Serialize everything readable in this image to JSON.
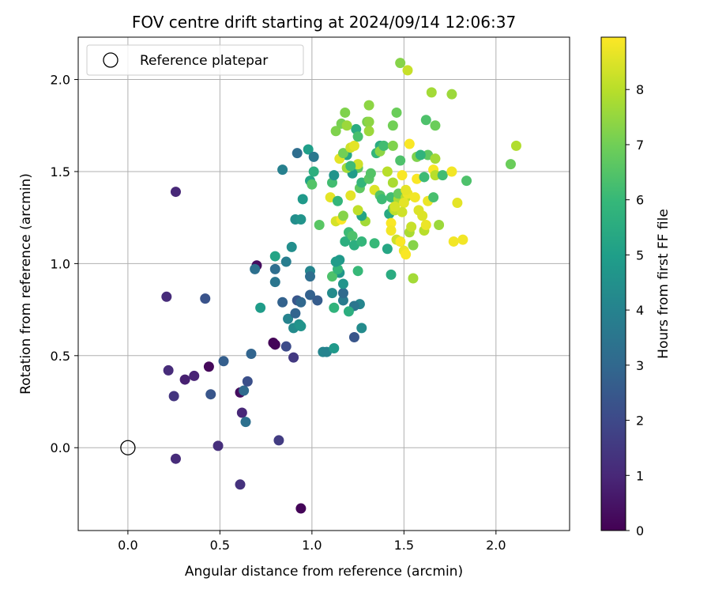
{
  "chart_data": {
    "type": "scatter",
    "title": "FOV centre drift starting at 2024/09/14 12:06:37",
    "xlabel": "Angular distance from reference (arcmin)",
    "ylabel": "Rotation from reference (arcmin)",
    "xlim": [
      -0.27,
      2.4
    ],
    "ylim": [
      -0.45,
      2.23
    ],
    "xticks": [
      0.0,
      0.5,
      1.0,
      1.5,
      2.0
    ],
    "yticks": [
      0.0,
      0.5,
      1.0,
      1.5,
      2.0
    ],
    "xtick_labels": [
      "0.0",
      "0.5",
      "1.0",
      "1.5",
      "2.0"
    ],
    "ytick_labels": [
      "0.0",
      "0.5",
      "1.0",
      "1.5",
      "2.0"
    ],
    "grid": true,
    "legend": {
      "location": "upper-left",
      "entries": [
        {
          "label": "Reference platepar",
          "marker": "open-circle"
        }
      ]
    },
    "reference_point": {
      "x": 0.0,
      "y": 0.0
    },
    "colorbar": {
      "label": "Hours from first FF file",
      "range": [
        0,
        8.95
      ],
      "ticks": [
        0,
        1,
        2,
        3,
        4,
        5,
        6,
        7,
        8
      ],
      "tick_labels": [
        "0",
        "1",
        "2",
        "3",
        "4",
        "5",
        "6",
        "7",
        "8"
      ],
      "colormap": "viridis",
      "stops": [
        "#440154",
        "#482878",
        "#3e4989",
        "#31688e",
        "#26828e",
        "#1f9e89",
        "#35b779",
        "#6ece58",
        "#b5de2b",
        "#fde725"
      ]
    },
    "points": [
      [
        0.94,
        -0.33,
        0.1
      ],
      [
        0.61,
        -0.2,
        1.3
      ],
      [
        0.26,
        -0.06,
        1.1
      ],
      [
        0.49,
        0.01,
        1.2
      ],
      [
        0.82,
        0.04,
        1.6
      ],
      [
        0.62,
        0.19,
        1.0
      ],
      [
        0.64,
        0.14,
        3.3
      ],
      [
        0.25,
        0.28,
        1.4
      ],
      [
        0.45,
        0.29,
        2.4
      ],
      [
        0.61,
        0.3,
        0.3
      ],
      [
        0.63,
        0.31,
        3.1
      ],
      [
        0.65,
        0.36,
        2.2
      ],
      [
        0.31,
        0.37,
        0.8
      ],
      [
        0.36,
        0.39,
        0.9
      ],
      [
        0.22,
        0.42,
        1.1
      ],
      [
        0.44,
        0.44,
        0.2
      ],
      [
        0.52,
        0.47,
        2.7
      ],
      [
        0.67,
        0.51,
        2.9
      ],
      [
        0.8,
        0.56,
        0.1
      ],
      [
        0.79,
        0.57,
        0.1
      ],
      [
        0.86,
        0.55,
        2.1
      ],
      [
        0.9,
        0.49,
        1.5
      ],
      [
        0.21,
        0.82,
        1.1
      ],
      [
        0.42,
        0.81,
        2.3
      ],
      [
        0.7,
        0.99,
        0.3
      ],
      [
        0.69,
        0.97,
        3.3
      ],
      [
        0.8,
        0.97,
        3.2
      ],
      [
        0.8,
        0.9,
        3.5
      ],
      [
        0.72,
        0.76,
        4.9
      ],
      [
        0.84,
        0.79,
        2.8
      ],
      [
        0.87,
        0.7,
        4.0
      ],
      [
        0.9,
        0.65,
        4.3
      ],
      [
        0.91,
        0.73,
        2.9
      ],
      [
        0.93,
        0.67,
        4.5
      ],
      [
        0.92,
        0.8,
        2.4
      ],
      [
        0.94,
        0.79,
        3.0
      ],
      [
        0.94,
        0.66,
        4.6
      ],
      [
        0.89,
        1.09,
        4.4
      ],
      [
        0.8,
        1.04,
        5.2
      ],
      [
        0.86,
        1.01,
        3.8
      ],
      [
        0.99,
        0.96,
        4.1
      ],
      [
        0.99,
        0.93,
        3.2
      ],
      [
        0.99,
        0.83,
        2.8
      ],
      [
        1.03,
        0.8,
        2.6
      ],
      [
        1.06,
        0.52,
        4.1
      ],
      [
        1.08,
        0.52,
        4.0
      ],
      [
        1.12,
        0.54,
        4.8
      ],
      [
        1.23,
        0.6,
        2.4
      ],
      [
        1.27,
        0.65,
        4.3
      ],
      [
        1.26,
        0.78,
        4.1
      ],
      [
        1.23,
        0.77,
        3.5
      ],
      [
        1.2,
        0.74,
        5.6
      ],
      [
        1.17,
        0.8,
        3.7
      ],
      [
        1.11,
        0.84,
        4.3
      ],
      [
        1.12,
        0.76,
        5.8
      ],
      [
        1.15,
        0.95,
        4.7
      ],
      [
        1.17,
        0.84,
        3.1
      ],
      [
        1.17,
        0.89,
        4.6
      ],
      [
        1.11,
        0.93,
        6.4
      ],
      [
        1.14,
        0.97,
        5.9
      ],
      [
        1.15,
        1.02,
        4.8
      ],
      [
        1.13,
        1.01,
        4.9
      ],
      [
        1.25,
        0.96,
        6.0
      ],
      [
        0.26,
        1.39,
        1.0
      ],
      [
        0.84,
        1.51,
        3.9
      ],
      [
        0.91,
        1.24,
        4.4
      ],
      [
        0.94,
        1.24,
        4.6
      ],
      [
        0.95,
        1.35,
        4.8
      ],
      [
        0.92,
        1.6,
        3.2
      ],
      [
        0.98,
        1.62,
        5.0
      ],
      [
        1.01,
        1.58,
        3.6
      ],
      [
        0.99,
        1.45,
        5.2
      ],
      [
        1.0,
        1.43,
        6.5
      ],
      [
        1.01,
        1.5,
        5.6
      ],
      [
        1.04,
        1.21,
        6.6
      ],
      [
        1.11,
        1.44,
        6.2
      ],
      [
        1.1,
        1.36,
        8.6
      ],
      [
        1.12,
        1.48,
        4.6
      ],
      [
        1.14,
        1.34,
        5.9
      ],
      [
        1.13,
        1.23,
        8.4
      ],
      [
        1.16,
        1.24,
        8.9
      ],
      [
        1.17,
        1.26,
        7.3
      ],
      [
        1.18,
        1.12,
        5.6
      ],
      [
        1.2,
        1.17,
        6.1
      ],
      [
        1.22,
        1.15,
        6.4
      ],
      [
        1.23,
        1.1,
        5.6
      ],
      [
        1.27,
        1.12,
        5.9
      ],
      [
        1.29,
        1.23,
        7.7
      ],
      [
        1.27,
        1.26,
        5.2
      ],
      [
        1.25,
        1.29,
        8.1
      ],
      [
        1.21,
        1.37,
        8.6
      ],
      [
        1.26,
        1.41,
        6.7
      ],
      [
        1.27,
        1.44,
        5.9
      ],
      [
        1.25,
        1.52,
        6.7
      ],
      [
        1.25,
        1.54,
        8.3
      ],
      [
        1.22,
        1.49,
        4.9
      ],
      [
        1.19,
        1.59,
        5.3
      ],
      [
        1.19,
        1.52,
        7.7
      ],
      [
        1.15,
        1.57,
        8.6
      ],
      [
        1.17,
        1.6,
        7.0
      ],
      [
        1.21,
        1.63,
        8.3
      ],
      [
        1.23,
        1.64,
        8.6
      ],
      [
        1.21,
        1.53,
        6.1
      ],
      [
        1.24,
        1.73,
        5.5
      ],
      [
        1.25,
        1.69,
        6.3
      ],
      [
        1.13,
        1.72,
        7.2
      ],
      [
        1.16,
        1.76,
        7.1
      ],
      [
        1.19,
        1.75,
        7.6
      ],
      [
        1.18,
        1.82,
        7.2
      ],
      [
        1.3,
        1.77,
        7.1
      ],
      [
        1.31,
        1.77,
        7.4
      ],
      [
        1.31,
        1.72,
        7.6
      ],
      [
        1.31,
        1.86,
        7.4
      ],
      [
        1.35,
        1.6,
        5.9
      ],
      [
        1.37,
        1.64,
        5.5
      ],
      [
        1.37,
        1.61,
        7.4
      ],
      [
        1.39,
        1.64,
        6.2
      ],
      [
        1.44,
        1.64,
        7.2
      ],
      [
        1.44,
        1.75,
        7.0
      ],
      [
        1.46,
        1.82,
        6.9
      ],
      [
        1.41,
        1.5,
        8.0
      ],
      [
        1.31,
        1.46,
        6.6
      ],
      [
        1.32,
        1.49,
        6.5
      ],
      [
        1.34,
        1.4,
        8.5
      ],
      [
        1.37,
        1.37,
        6.5
      ],
      [
        1.38,
        1.35,
        6.1
      ],
      [
        1.43,
        1.36,
        6.2
      ],
      [
        1.44,
        1.44,
        7.8
      ],
      [
        1.42,
        1.27,
        5.4
      ],
      [
        1.44,
        1.3,
        6.7
      ],
      [
        1.45,
        1.29,
        8.1
      ],
      [
        1.47,
        1.35,
        7.8
      ],
      [
        1.47,
        1.38,
        6.8
      ],
      [
        1.51,
        1.36,
        8.0
      ],
      [
        1.52,
        1.38,
        8.7
      ],
      [
        1.5,
        1.33,
        8.6
      ],
      [
        1.49,
        1.28,
        8.3
      ],
      [
        1.43,
        1.22,
        8.9
      ],
      [
        1.43,
        1.18,
        8.8
      ],
      [
        1.46,
        1.13,
        8.3
      ],
      [
        1.41,
        1.08,
        5.3
      ],
      [
        1.43,
        0.94,
        5.5
      ],
      [
        1.34,
        1.11,
        6.0
      ],
      [
        1.48,
        1.12,
        6.6
      ],
      [
        1.48,
        1.12,
        8.9
      ],
      [
        1.5,
        1.07,
        8.7
      ],
      [
        1.51,
        1.05,
        8.9
      ],
      [
        1.53,
        1.17,
        7.8
      ],
      [
        1.54,
        1.2,
        8.2
      ],
      [
        1.55,
        1.1,
        7.3
      ],
      [
        1.55,
        0.92,
        7.7
      ],
      [
        1.56,
        1.36,
        8.8
      ],
      [
        1.57,
        1.46,
        8.9
      ],
      [
        1.58,
        1.29,
        8.5
      ],
      [
        1.6,
        1.26,
        8.5
      ],
      [
        1.61,
        1.18,
        8.0
      ],
      [
        1.62,
        1.21,
        8.7
      ],
      [
        1.63,
        1.34,
        8.7
      ],
      [
        1.61,
        1.47,
        6.1
      ],
      [
        1.63,
        1.59,
        6.7
      ],
      [
        1.66,
        1.51,
        8.9
      ],
      [
        1.67,
        1.48,
        8.0
      ],
      [
        1.66,
        1.36,
        6.3
      ],
      [
        1.69,
        1.21,
        7.6
      ],
      [
        1.71,
        1.48,
        6.2
      ],
      [
        1.76,
        1.5,
        8.8
      ],
      [
        1.77,
        1.12,
        8.8
      ],
      [
        1.82,
        1.13,
        8.8
      ],
      [
        1.79,
        1.33,
        8.6
      ],
      [
        1.84,
        1.45,
        6.4
      ],
      [
        1.48,
        1.56,
        6.4
      ],
      [
        1.49,
        1.48,
        8.9
      ],
      [
        1.53,
        1.65,
        8.9
      ],
      [
        1.57,
        1.58,
        7.2
      ],
      [
        1.59,
        1.59,
        5.8
      ],
      [
        1.62,
        1.78,
        6.4
      ],
      [
        1.67,
        1.75,
        6.9
      ],
      [
        1.67,
        1.57,
        7.7
      ],
      [
        1.65,
        1.93,
        7.7
      ],
      [
        1.76,
        1.92,
        7.6
      ],
      [
        1.48,
        2.09,
        7.3
      ],
      [
        1.52,
        2.05,
        8.2
      ],
      [
        2.08,
        1.54,
        6.9
      ],
      [
        2.11,
        1.64,
        7.9
      ],
      [
        1.51,
        1.4,
        8.6
      ],
      [
        1.45,
        1.31,
        8.4
      ]
    ]
  }
}
